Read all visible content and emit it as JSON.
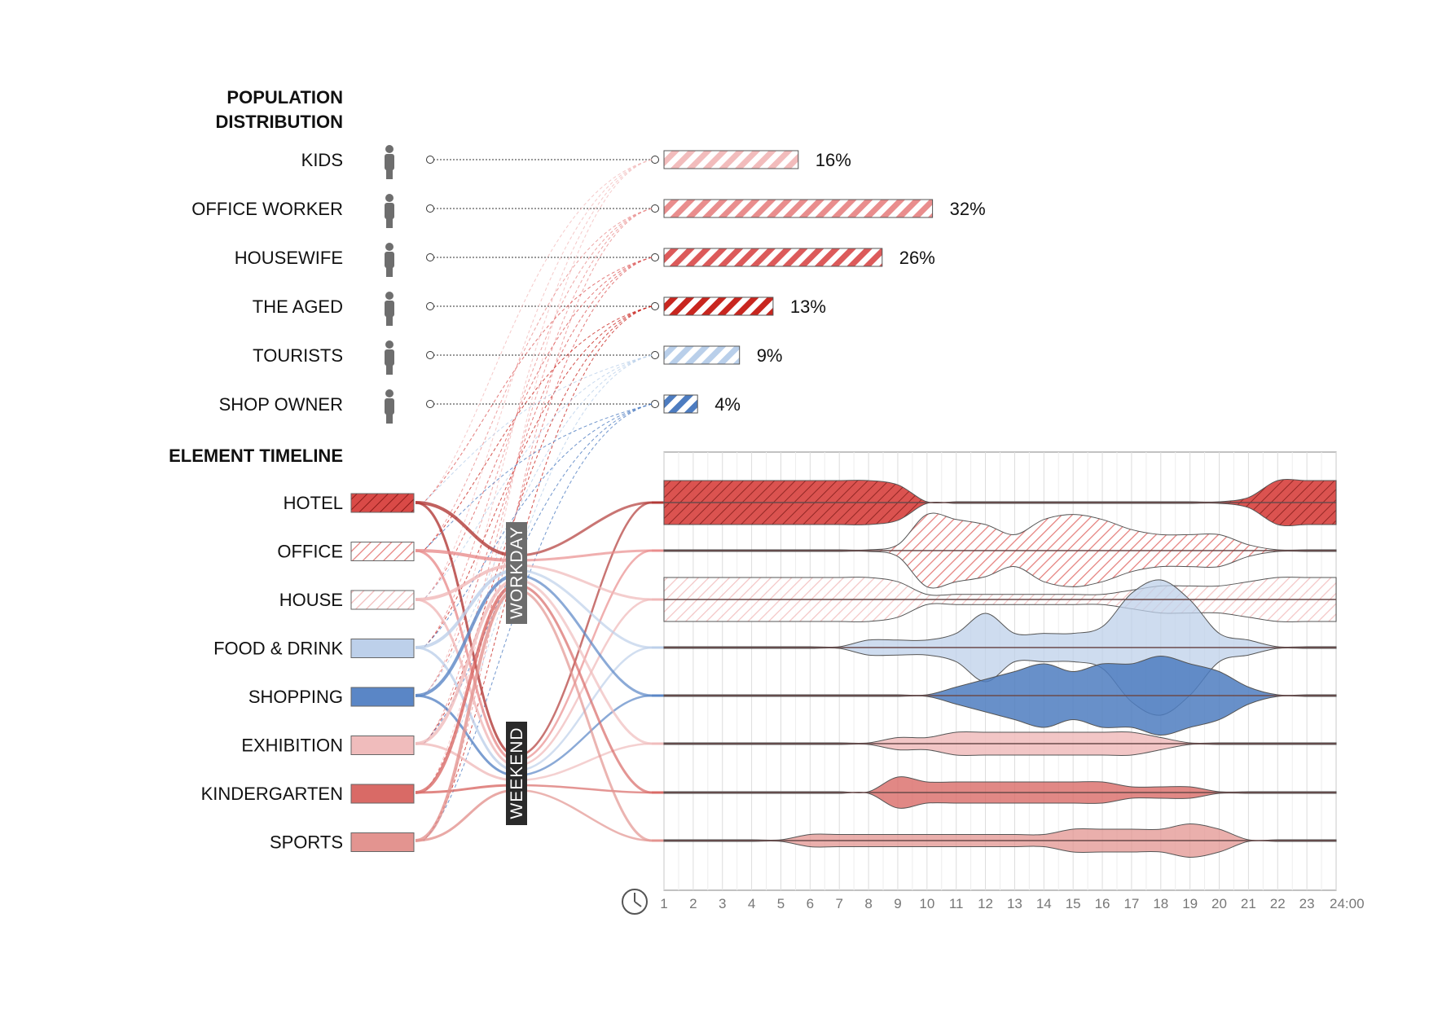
{
  "population": {
    "title_line1": "POPULATION",
    "title_line2": "DISTRIBUTION",
    "rows": [
      {
        "label": "KIDS",
        "percent": 16,
        "percent_label": "16%",
        "color": "#f2bcbc"
      },
      {
        "label": "OFFICE WORKER",
        "percent": 32,
        "percent_label": "32%",
        "color": "#e98d8d"
      },
      {
        "label": "HOUSEWIFE",
        "percent": 26,
        "percent_label": "26%",
        "color": "#dc5a5a"
      },
      {
        "label": "THE AGED",
        "percent": 13,
        "percent_label": "13%",
        "color": "#c8261f"
      },
      {
        "label": "TOURISTS",
        "percent": 9,
        "percent_label": "9%",
        "color": "#b9cfea"
      },
      {
        "label": "SHOP OWNER",
        "percent": 4,
        "percent_label": "4%",
        "color": "#4d7cc0"
      }
    ]
  },
  "timeline": {
    "title": "ELEMENT TIMELINE",
    "workday_label": "WORKDAY",
    "weekend_label": "WEEKEND",
    "elements": [
      {
        "label": "HOTEL",
        "color": "#d94a47",
        "pattern": "dense"
      },
      {
        "label": "OFFICE",
        "color": "#e98d8d",
        "pattern": "sparse"
      },
      {
        "label": "HOUSE",
        "color": "#f0b8b8",
        "pattern": "sparse"
      },
      {
        "label": "FOOD & DRINK",
        "color": "#bdd0ea",
        "pattern": "solid"
      },
      {
        "label": "SHOPPING",
        "color": "#5a86c6",
        "pattern": "solid"
      },
      {
        "label": "EXHIBITION",
        "color": "#f0bcbc",
        "pattern": "solid"
      },
      {
        "label": "KINDERGARTEN",
        "color": "#d96a66",
        "pattern": "solid"
      },
      {
        "label": "SPORTS",
        "color": "#e39490",
        "pattern": "solid"
      }
    ]
  },
  "chart_data": {
    "type": "area",
    "x": [
      1,
      2,
      3,
      4,
      5,
      6,
      7,
      8,
      9,
      10,
      11,
      12,
      13,
      14,
      15,
      16,
      17,
      18,
      19,
      20,
      21,
      22,
      23,
      24
    ],
    "tick_labels": [
      "1",
      "2",
      "3",
      "4",
      "5",
      "6",
      "7",
      "8",
      "9",
      "10",
      "11",
      "12",
      "13",
      "14",
      "15",
      "16",
      "17",
      "18",
      "19",
      "20",
      "21",
      "22",
      "23",
      "24:00"
    ],
    "xlim": [
      1,
      24
    ],
    "grid": true,
    "series": [
      {
        "name": "HOTEL",
        "color": "#d94a47",
        "values": [
          5,
          5,
          5,
          5,
          5,
          5,
          5,
          5,
          4,
          0,
          0,
          0,
          0,
          0,
          0,
          0,
          0,
          0,
          0,
          0,
          1,
          5,
          5,
          5
        ]
      },
      {
        "name": "OFFICE",
        "color": "#e98d8d",
        "values": [
          0,
          0,
          0,
          0,
          0,
          0,
          0,
          0,
          1,
          7,
          6,
          5,
          3,
          6,
          7,
          6,
          4,
          3,
          3,
          3,
          1,
          0,
          0,
          0
        ]
      },
      {
        "name": "HOUSE",
        "color": "#f0b8b8",
        "values": [
          5,
          5,
          5,
          5,
          5,
          5,
          5,
          5,
          4,
          1,
          1,
          1,
          1,
          1,
          1,
          1,
          2,
          3,
          3,
          3,
          4,
          5,
          5,
          5
        ]
      },
      {
        "name": "FOOD & DRINK",
        "color": "#bdd0ea",
        "values": [
          0,
          0,
          0,
          0,
          0,
          0,
          0,
          1,
          1,
          1,
          2,
          5,
          2,
          2,
          2,
          3,
          8,
          10,
          7,
          2,
          1,
          0,
          0,
          0
        ]
      },
      {
        "name": "SHOPPING",
        "color": "#5a86c6",
        "values": [
          0,
          0,
          0,
          0,
          0,
          0,
          0,
          0,
          0,
          0,
          1,
          2,
          3,
          4,
          3,
          4,
          4,
          5,
          4,
          3,
          1,
          0,
          0,
          0
        ]
      },
      {
        "name": "EXHIBITION",
        "color": "#f0bcbc",
        "values": [
          0,
          0,
          0,
          0,
          0,
          0,
          0,
          0,
          1,
          1,
          2,
          2,
          2,
          2,
          2,
          2,
          2,
          1,
          0,
          0,
          0,
          0,
          0,
          0
        ]
      },
      {
        "name": "KINDERGARTEN",
        "color": "#d96a66",
        "values": [
          0,
          0,
          0,
          0,
          0,
          0,
          0,
          0,
          3,
          2,
          2,
          2,
          2,
          2,
          2,
          2,
          1,
          1,
          1,
          0,
          0,
          0,
          0,
          0
        ]
      },
      {
        "name": "SPORTS",
        "color": "#e39490",
        "values": [
          0,
          0,
          0,
          0,
          0,
          1,
          1,
          1,
          1,
          1,
          1,
          1,
          1,
          1,
          2,
          2,
          2,
          2,
          3,
          2,
          0,
          0,
          0,
          0
        ]
      }
    ]
  }
}
